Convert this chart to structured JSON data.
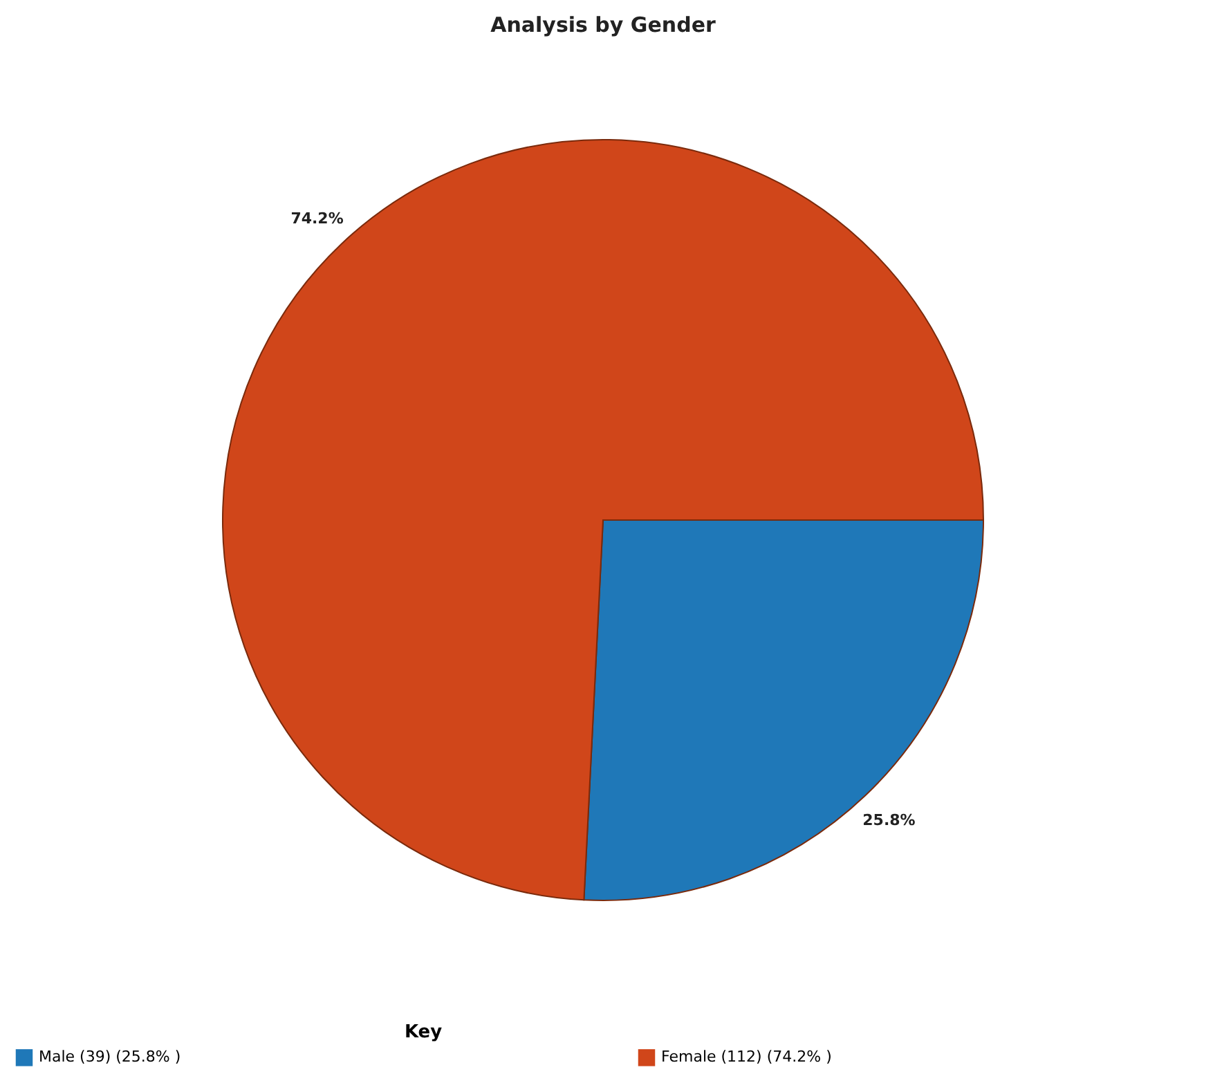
{
  "chart_data": {
    "type": "pie",
    "title": "Analysis by Gender",
    "legend_title": "Key",
    "categories": [
      "Male (39) (25.8% )",
      "Female (112) (74.2% )"
    ],
    "values": [
      25.8,
      74.2
    ],
    "value_labels": [
      "25.8%",
      "74.2%"
    ],
    "colors": [
      "#1f78b8",
      "#d0461a"
    ],
    "legend": "bottom"
  }
}
